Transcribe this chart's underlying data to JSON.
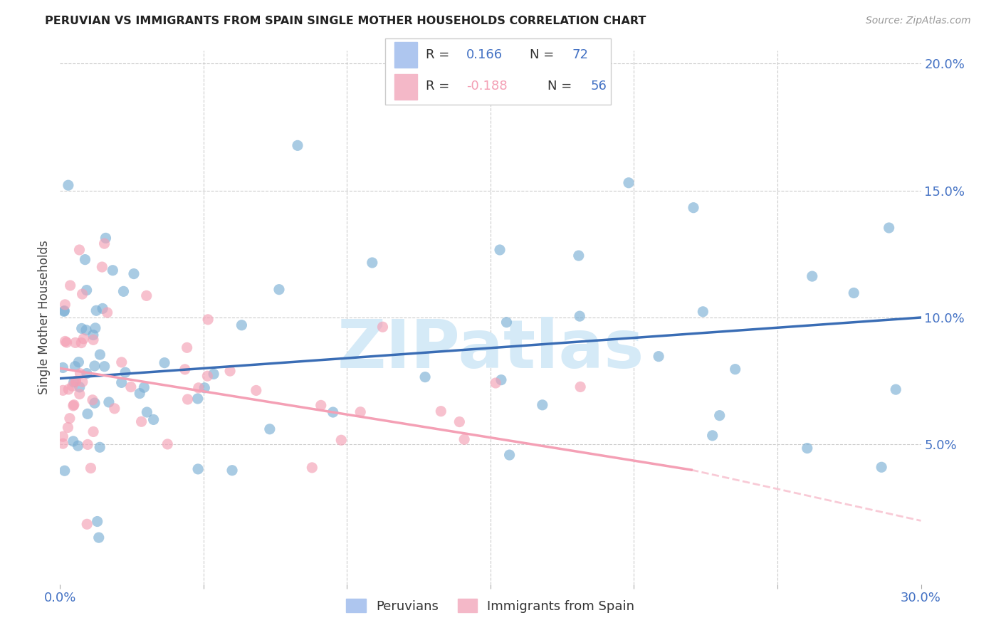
{
  "title": "PERUVIAN VS IMMIGRANTS FROM SPAIN SINGLE MOTHER HOUSEHOLDS CORRELATION CHART",
  "source": "Source: ZipAtlas.com",
  "ylabel": "Single Mother Households",
  "xlim": [
    0.0,
    0.3
  ],
  "ylim": [
    -0.005,
    0.205
  ],
  "peruvian_color": "#7BAFD4",
  "spain_color": "#F4A0B5",
  "peruvian_fill": "#aec6ef",
  "spain_fill": "#f4b8c8",
  "blue_line_color": "#3A6DB5",
  "pink_line_color": "#F4A0B5",
  "watermark_color": "#d5eaf7",
  "grid_color": "#cccccc",
  "r1": "0.166",
  "n1": "72",
  "r2": "-0.188",
  "n2": "56",
  "blue_line_start_y": 0.076,
  "blue_line_end_y": 0.1,
  "pink_line_start_y": 0.08,
  "pink_line_end_y": 0.04,
  "pink_line_dash_end_y": 0.02
}
